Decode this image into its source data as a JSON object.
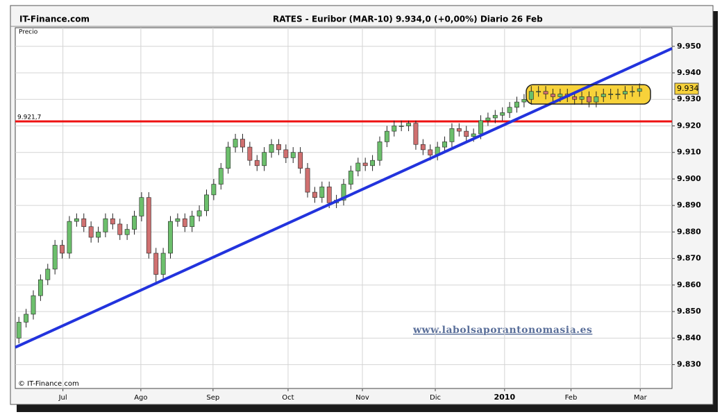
{
  "chart_data": {
    "type": "candlestick",
    "site": "IT-Finance.com",
    "title": "RATES - Euribor  (MAR-10)   9.934,0 (+0,00%)   Diario  26 Feb",
    "panel_label": "Precio",
    "copyright": "© IT-Finance.com",
    "watermark": "www.labolsaporantonomasia.es",
    "up_color": "#6cbf6c",
    "down_color": "#d07070",
    "open": [
      9.84,
      9.846,
      9.849,
      9.856,
      9.862,
      9.866,
      9.875,
      9.872,
      9.884,
      9.885,
      9.882,
      9.878,
      9.88,
      9.885,
      9.883,
      9.879,
      9.881,
      9.886,
      9.893,
      9.872,
      9.864,
      9.872,
      9.884,
      9.885,
      9.882,
      9.886,
      9.888,
      9.894,
      9.898,
      9.904,
      9.912,
      9.915,
      9.912,
      9.907,
      9.905,
      9.91,
      9.913,
      9.911,
      9.908,
      9.91,
      9.904,
      9.895,
      9.893,
      9.897,
      9.891,
      9.892,
      9.898,
      9.903,
      9.906,
      9.905,
      9.907,
      9.914,
      9.918,
      9.92,
      9.92,
      9.921,
      9.913,
      9.911,
      9.909,
      9.912,
      9.914,
      9.919,
      9.918,
      9.916,
      9.917,
      9.922,
      9.923,
      9.924,
      9.925,
      9.927,
      9.929,
      9.93,
      9.933,
      9.933,
      9.932,
      9.931,
      9.932,
      9.931,
      9.93,
      9.931,
      9.929,
      9.931,
      9.932,
      9.932,
      9.932,
      9.933,
      9.933
    ],
    "high": [
      9.848,
      9.851,
      9.858,
      9.864,
      9.868,
      9.877,
      9.877,
      9.886,
      9.887,
      9.887,
      9.884,
      9.882,
      9.887,
      9.887,
      9.885,
      9.883,
      9.888,
      9.895,
      9.895,
      9.874,
      9.874,
      9.886,
      9.887,
      9.887,
      9.888,
      9.89,
      9.896,
      9.9,
      9.906,
      9.914,
      9.917,
      9.917,
      9.914,
      9.909,
      9.912,
      9.915,
      9.915,
      9.913,
      9.912,
      9.912,
      9.906,
      9.897,
      9.899,
      9.899,
      9.894,
      9.9,
      9.905,
      9.908,
      9.908,
      9.909,
      9.916,
      9.92,
      9.922,
      9.922,
      9.922,
      9.922,
      9.915,
      9.913,
      9.914,
      9.916,
      9.921,
      9.921,
      9.92,
      9.919,
      9.924,
      9.925,
      9.926,
      9.927,
      9.929,
      9.931,
      9.932,
      9.935,
      9.935,
      9.935,
      9.934,
      9.934,
      9.934,
      9.933,
      9.933,
      9.933,
      9.933,
      9.934,
      9.934,
      9.934,
      9.935,
      9.935,
      9.936
    ],
    "low": [
      9.838,
      9.844,
      9.847,
      9.854,
      9.86,
      9.864,
      9.87,
      9.87,
      9.882,
      9.88,
      9.876,
      9.876,
      9.878,
      9.881,
      9.877,
      9.877,
      9.879,
      9.884,
      9.87,
      9.861,
      9.862,
      9.87,
      9.882,
      9.88,
      9.88,
      9.884,
      9.886,
      9.892,
      9.896,
      9.902,
      9.91,
      9.91,
      9.905,
      9.903,
      9.903,
      9.908,
      9.909,
      9.906,
      9.906,
      9.902,
      9.893,
      9.891,
      9.891,
      9.889,
      9.889,
      9.89,
      9.896,
      9.901,
      9.903,
      9.903,
      9.905,
      9.912,
      9.916,
      9.918,
      9.918,
      9.911,
      9.909,
      9.907,
      9.907,
      9.91,
      9.912,
      9.916,
      9.914,
      9.914,
      9.915,
      9.92,
      9.921,
      9.922,
      9.923,
      9.925,
      9.927,
      9.928,
      9.931,
      9.93,
      9.929,
      9.929,
      9.929,
      9.928,
      9.928,
      9.927,
      9.927,
      9.929,
      9.93,
      9.93,
      9.93,
      9.931,
      9.931
    ],
    "close": [
      9.846,
      9.849,
      9.856,
      9.862,
      9.866,
      9.875,
      9.872,
      9.884,
      9.885,
      9.882,
      9.878,
      9.88,
      9.885,
      9.883,
      9.879,
      9.881,
      9.886,
      9.893,
      9.872,
      9.864,
      9.872,
      9.884,
      9.885,
      9.882,
      9.886,
      9.888,
      9.894,
      9.898,
      9.904,
      9.912,
      9.915,
      9.912,
      9.907,
      9.905,
      9.91,
      9.913,
      9.911,
      9.908,
      9.91,
      9.904,
      9.895,
      9.893,
      9.897,
      9.891,
      9.892,
      9.898,
      9.903,
      9.906,
      9.905,
      9.907,
      9.914,
      9.918,
      9.92,
      9.92,
      9.921,
      9.913,
      9.911,
      9.909,
      9.912,
      9.914,
      9.919,
      9.918,
      9.916,
      9.917,
      9.922,
      9.923,
      9.924,
      9.925,
      9.927,
      9.929,
      9.93,
      9.933,
      9.933,
      9.932,
      9.931,
      9.932,
      9.931,
      9.93,
      9.931,
      9.929,
      9.931,
      9.932,
      9.932,
      9.932,
      9.933,
      9.933,
      9.934
    ],
    "last_price": 9.934,
    "xlim": [
      0,
      91
    ],
    "xticks": [
      {
        "value": 6.6,
        "label": "Jul"
      },
      {
        "value": 17.4,
        "label": "Ago"
      },
      {
        "value": 27.4,
        "label": "Sep"
      },
      {
        "value": 37.8,
        "label": "Oct"
      },
      {
        "value": 48.1,
        "label": "Nov"
      },
      {
        "value": 58.2,
        "label": "Dic"
      },
      {
        "value": 67.8,
        "label": "2010"
      },
      {
        "value": 77.0,
        "label": "Feb"
      },
      {
        "value": 86.6,
        "label": "Mar"
      }
    ],
    "ylim": [
      9.821,
      9.957
    ],
    "yticks": [
      {
        "value": 9.83,
        "label": "9.830"
      },
      {
        "value": 9.84,
        "label": "9.840"
      },
      {
        "value": 9.85,
        "label": "9.850"
      },
      {
        "value": 9.86,
        "label": "9.860"
      },
      {
        "value": 9.87,
        "label": "9.870"
      },
      {
        "value": 9.88,
        "label": "9.880"
      },
      {
        "value": 9.89,
        "label": "9.890"
      },
      {
        "value": 9.9,
        "label": "9.900"
      },
      {
        "value": 9.91,
        "label": "9.910"
      },
      {
        "value": 9.92,
        "label": "9.920"
      },
      {
        "value": 9.93,
        "label": "9.930"
      },
      {
        "value": 9.94,
        "label": "9.940"
      },
      {
        "value": 9.95,
        "label": "9.950"
      }
    ],
    "grid": true,
    "resistance": {
      "value": 9.9217,
      "label": "9.921,7",
      "color": "#ee1111"
    },
    "trendline": {
      "x": [
        0,
        91
      ],
      "y": [
        9.8365,
        9.9492
      ],
      "color": "#2233dd"
    }
  }
}
